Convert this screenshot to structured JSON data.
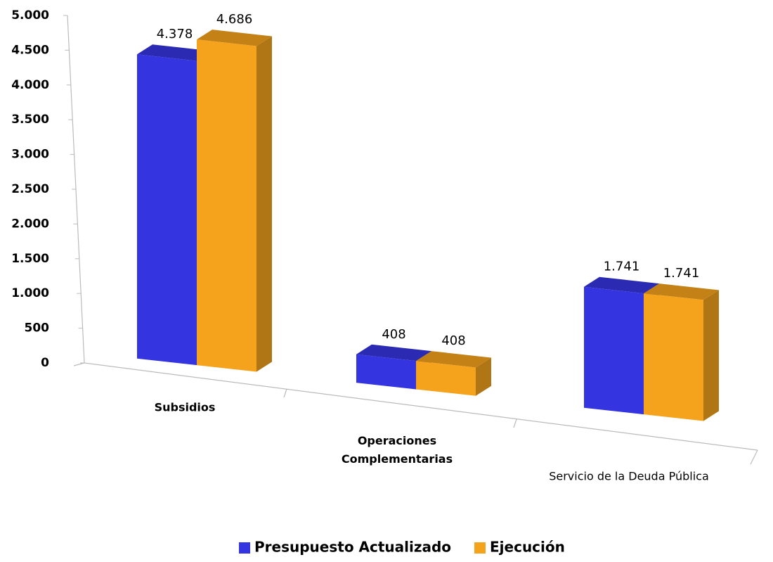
{
  "chart_data": {
    "type": "bar3d",
    "categories": [
      "Subsidios",
      "Operaciones Complementarias",
      "Servicio de la Deuda Pública"
    ],
    "series": [
      {
        "name": "Presupuesto Actualizado",
        "color": "#3434e0",
        "values": [
          4378,
          408,
          1741
        ],
        "value_labels": [
          "4.378",
          "408",
          "1.741"
        ]
      },
      {
        "name": "Ejecución",
        "color": "#f5a21c",
        "values": [
          4686,
          408,
          1741
        ],
        "value_labels": [
          "4.686",
          "408",
          "1.741"
        ]
      }
    ],
    "ylim": [
      0,
      5000
    ],
    "yticks": [
      0,
      500,
      {
        "value": 1000,
        "label": "1.000"
      },
      {
        "value": 1500,
        "label": "1.500"
      },
      {
        "value": 2000,
        "label": "2.000"
      },
      {
        "value": 2500,
        "label": "2.500"
      },
      {
        "value": 3000,
        "label": "3.000"
      },
      {
        "value": 3500,
        "label": "3.500"
      },
      {
        "value": 4000,
        "label": "4.000"
      },
      {
        "value": 4500,
        "label": "4.500"
      },
      {
        "value": 5000,
        "label": "5.000"
      }
    ],
    "legend": "bottom"
  }
}
